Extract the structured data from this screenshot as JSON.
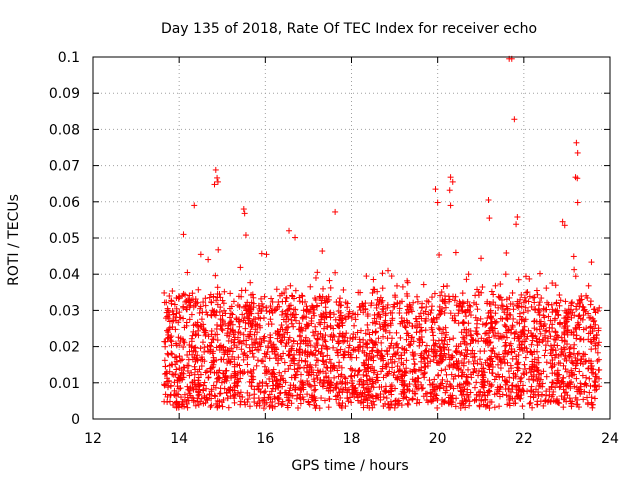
{
  "chart_data": {
    "type": "scatter",
    "title": "Day 135 of 2018, Rate Of TEC Index for receiver echo",
    "xlabel": "GPS time / hours",
    "ylabel": "ROTI / TECUs",
    "xlim": [
      12,
      24
    ],
    "ylim": [
      0,
      0.1
    ],
    "xticks": [
      "12",
      "14",
      "16",
      "18",
      "20",
      "22",
      "24"
    ],
    "yticks": [
      "0",
      "0.01",
      "0.02",
      "0.03",
      "0.04",
      "0.05",
      "0.06",
      "0.07",
      "0.08",
      "0.09",
      "0.1"
    ],
    "grid": true,
    "marker": "+",
    "color": "#ff0000",
    "series": [
      {
        "x_range": [
          13.65,
          23.75
        ],
        "points": [
          [
            21.66,
            0.0995
          ],
          [
            21.72,
            0.0995
          ],
          [
            21.78,
            0.0828
          ],
          [
            23.22,
            0.0763
          ],
          [
            23.25,
            0.0735
          ],
          [
            23.2,
            0.0668
          ],
          [
            23.24,
            0.0665
          ],
          [
            14.85,
            0.0688
          ],
          [
            14.88,
            0.0666
          ],
          [
            14.82,
            0.0648
          ],
          [
            14.9,
            0.0655
          ],
          [
            20.3,
            0.0668
          ],
          [
            20.35,
            0.0655
          ],
          [
            20.28,
            0.0632
          ],
          [
            19.95,
            0.0635
          ],
          [
            20.0,
            0.0598
          ],
          [
            20.3,
            0.059
          ],
          [
            21.18,
            0.0605
          ],
          [
            23.25,
            0.0598
          ],
          [
            14.35,
            0.059
          ],
          [
            15.5,
            0.058
          ],
          [
            15.52,
            0.0568
          ],
          [
            17.62,
            0.0572
          ],
          [
            21.2,
            0.0555
          ],
          [
            21.85,
            0.0558
          ],
          [
            21.82,
            0.0538
          ],
          [
            22.9,
            0.0545
          ],
          [
            22.95,
            0.0535
          ],
          [
            16.55,
            0.052
          ],
          [
            14.1,
            0.051
          ],
          [
            15.55,
            0.0508
          ]
        ],
        "seed_note_count": 3000
      }
    ]
  }
}
